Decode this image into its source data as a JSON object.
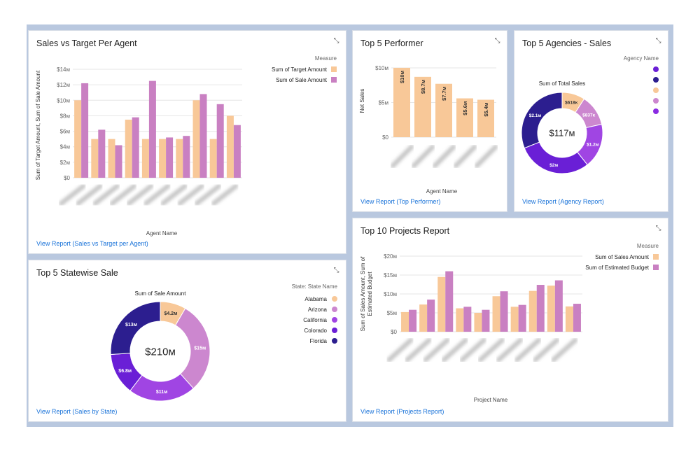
{
  "colors": {
    "orange": "#f8c898",
    "pink": "#c980c2",
    "purple_light": "#cc87cf",
    "purple_mid": "#a045e3",
    "purple_bright": "#8a2be2",
    "purple": "#6a1fd6",
    "navy": "#2c1e8f",
    "link": "#1a73d9"
  },
  "icons": {
    "expand": "expand-arrows-icon"
  },
  "cards": {
    "sales_vs_target": {
      "title": "Sales vs Target Per Agent",
      "link": "View Report (Sales vs Target per Agent)",
      "chart_data": {
        "type": "bar",
        "legend_title": "Measure",
        "legend_placement": "top-right",
        "xlabel": "Agent Name",
        "ylabel": "Sum of Target Amount, Sum of Sale Amount",
        "yticks": [
          "$0",
          "$2м",
          "$4м",
          "$6м",
          "$8м",
          "$10м",
          "$12м",
          "$14м"
        ],
        "ylim": [
          0,
          14
        ],
        "series": [
          {
            "name": "Sum of Target Amount",
            "color": "#f8c898",
            "values": [
              10,
              5,
              5,
              7.5,
              5,
              5,
              5,
              10,
              5,
              8
            ]
          },
          {
            "name": "Sum of Sale Amount",
            "color": "#c980c2",
            "values": [
              12.2,
              6.2,
              4.2,
              7.8,
              12.5,
              5.2,
              5.4,
              10.8,
              9.5,
              6.8
            ]
          }
        ]
      }
    },
    "top5_performer": {
      "title": "Top 5 Performer",
      "link": "View Report (Top Performer)",
      "chart_data": {
        "type": "bar",
        "xlabel": "Agent Name",
        "ylabel": "Net Sales",
        "yticks": [
          "$0",
          "$5м",
          "$10м"
        ],
        "ylim": [
          0,
          10.5
        ],
        "values": [
          10,
          8.7,
          7.7,
          5.6,
          5.4
        ],
        "data_labels": [
          "$10м",
          "$8.7м",
          "$7.7м",
          "$5.6м",
          "$5.4м"
        ]
      }
    },
    "top5_agencies": {
      "title": "Top 5 Agencies - Sales",
      "link": "View Report (Agency Report)",
      "chart_data": {
        "type": "pie",
        "title": "Sum of Total Sales",
        "legend_title": "Agency Name",
        "legend_placement": "right",
        "center_label": "$117м",
        "slices": [
          {
            "value": 0.618,
            "label": "$618κ",
            "color": "#f8c898"
          },
          {
            "value": 0.837,
            "label": "$837κ",
            "color": "#cc87cf"
          },
          {
            "value": 1.2,
            "label": "$1.2м",
            "color": "#a045e3"
          },
          {
            "value": 2.0,
            "label": "$2м",
            "color": "#6a1fd6"
          },
          {
            "value": 2.1,
            "label": "$2.1м",
            "color": "#2c1e8f"
          }
        ],
        "legend_colors": [
          "#6a1fd6",
          "#2c1e8f",
          "#f8c898",
          "#cc87cf",
          "#8a2be2"
        ]
      }
    },
    "top5_statewise": {
      "title": "Top 5 Statewise Sale",
      "link": "View Report (Sales by State)",
      "chart_data": {
        "type": "pie",
        "title": "Sum of Sale Amount",
        "legend_title": "State: State Name",
        "legend_placement": "right",
        "center_label": "$210м",
        "slices": [
          {
            "name": "Alabama",
            "value": 4.2,
            "label": "$4.2м",
            "color": "#f8c898"
          },
          {
            "name": "Arizona",
            "value": 15,
            "label": "$15м",
            "color": "#cc87cf"
          },
          {
            "name": "California",
            "value": 11,
            "label": "$11м",
            "color": "#a045e3"
          },
          {
            "name": "Colorado",
            "value": 6.8,
            "label": "$6.8м",
            "color": "#6a1fd6"
          },
          {
            "name": "Florida",
            "value": 13,
            "label": "$13м",
            "color": "#2c1e8f"
          }
        ]
      }
    },
    "top10_projects": {
      "title": "Top 10 Projects Report",
      "link": "View Report (Projects Report)",
      "chart_data": {
        "type": "bar",
        "legend_title": "Measure",
        "legend_placement": "top-right",
        "xlabel": "Project Name",
        "ylabel_lines": [
          "Sum of Sales Amount, Sum of",
          "Estimated Budget"
        ],
        "yticks": [
          "$0",
          "$5м",
          "$10м",
          "$15м",
          "$20м"
        ],
        "ylim": [
          0,
          20
        ],
        "series": [
          {
            "name": "Sum of Sales Amount",
            "color": "#f8c898",
            "values": [
              5.2,
              7.2,
              14.5,
              6.2,
              5,
              9.4,
              6.6,
              10.8,
              12.2,
              6.7
            ]
          },
          {
            "name": "Sum of Estimated Budget",
            "color": "#c980c2",
            "values": [
              5.8,
              8.5,
              16,
              6.6,
              5.8,
              10.7,
              7.1,
              12.4,
              13.6,
              7.4
            ]
          }
        ]
      }
    }
  }
}
